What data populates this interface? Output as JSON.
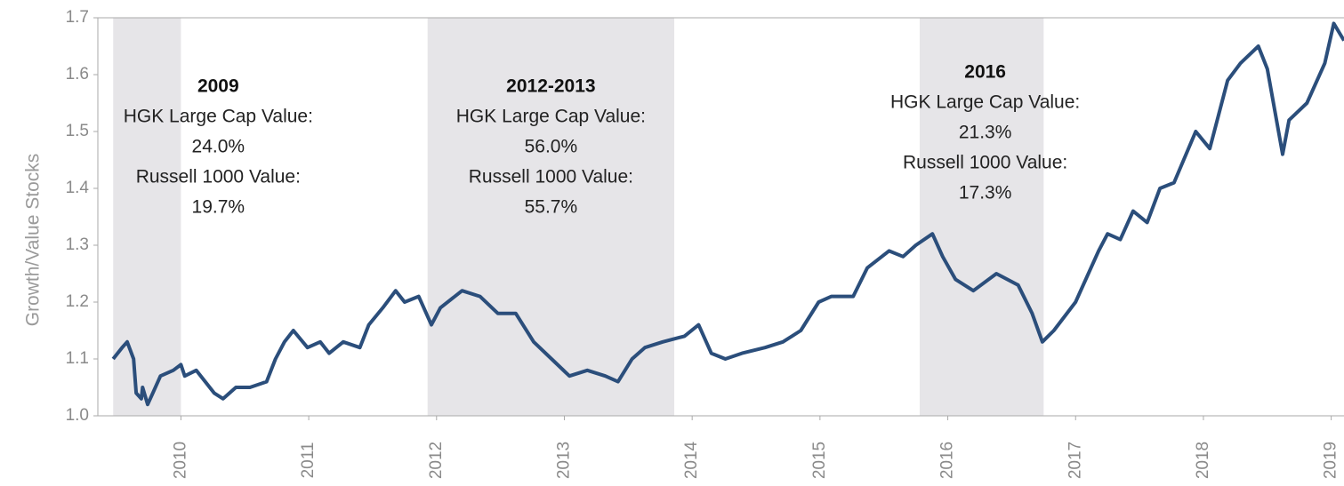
{
  "chart_data": {
    "type": "line",
    "y_label": "Growth/Value Stocks",
    "xlim": [
      2009.35,
      2019.1
    ],
    "xticks": [
      2010,
      2011,
      2012,
      2013,
      2014,
      2015,
      2016,
      2017,
      2018,
      2019
    ],
    "ylim": [
      1.0,
      1.7
    ],
    "yticks": [
      {
        "value": 1.0,
        "label": "1.0"
      },
      1.1,
      1.2,
      1.3,
      1.4,
      1.5,
      1.6,
      1.7
    ],
    "shaded_periods": [
      {
        "from": 2009.47,
        "to": 2010.0,
        "title": "2009",
        "lines": [
          "HGK Large Cap Value:",
          "24.0%",
          "Russell 1000 Value:",
          "19.7%"
        ]
      },
      {
        "from": 2011.93,
        "to": 2013.86,
        "title": "2012-2013",
        "lines": [
          "HGK Large Cap Value:",
          "56.0%",
          "Russell 1000 Value:",
          "55.7%"
        ]
      },
      {
        "from": 2015.78,
        "to": 2016.75,
        "title": "2016",
        "lines": [
          "HGK Large Cap Value:",
          "21.3%",
          "Russell 1000 Value:",
          "17.3%"
        ]
      }
    ],
    "shade_color": "#e6e5e8",
    "series": [
      {
        "color": "#2b4e7b",
        "x": [
          2009.47,
          2009.54,
          2009.58,
          2009.63,
          2009.65,
          2009.69,
          2009.7,
          2009.74,
          2009.78,
          2009.84,
          2009.94,
          2010.0,
          2010.03,
          2010.12,
          2010.26,
          2010.33,
          2010.43,
          2010.54,
          2010.67,
          2010.74,
          2010.81,
          2010.88,
          2010.99,
          2011.09,
          2011.16,
          2011.27,
          2011.4,
          2011.47,
          2011.58,
          2011.68,
          2011.75,
          2011.86,
          2011.96,
          2012.03,
          2012.2,
          2012.34,
          2012.48,
          2012.62,
          2012.76,
          2012.9,
          2013.04,
          2013.18,
          2013.32,
          2013.42,
          2013.53,
          2013.63,
          2013.77,
          2013.94,
          2014.05,
          2014.15,
          2014.26,
          2014.39,
          2014.57,
          2014.71,
          2014.85,
          2014.99,
          2015.09,
          2015.26,
          2015.37,
          2015.54,
          2015.65,
          2015.75,
          2015.88,
          2015.96,
          2016.06,
          2016.2,
          2016.38,
          2016.55,
          2016.66,
          2016.74,
          2016.83,
          2017.0,
          2017.18,
          2017.25,
          2017.35,
          2017.45,
          2017.56,
          2017.66,
          2017.77,
          2017.94,
          2018.05,
          2018.19,
          2018.29,
          2018.43,
          2018.5,
          2018.62,
          2018.67,
          2018.81,
          2018.95,
          2019.02,
          2019.1
        ],
        "values": [
          1.1,
          1.12,
          1.13,
          1.1,
          1.04,
          1.03,
          1.05,
          1.02,
          1.04,
          1.07,
          1.08,
          1.09,
          1.07,
          1.08,
          1.04,
          1.03,
          1.05,
          1.05,
          1.06,
          1.1,
          1.13,
          1.15,
          1.12,
          1.13,
          1.11,
          1.13,
          1.12,
          1.16,
          1.19,
          1.22,
          1.2,
          1.21,
          1.16,
          1.19,
          1.22,
          1.21,
          1.18,
          1.18,
          1.13,
          1.1,
          1.07,
          1.08,
          1.07,
          1.06,
          1.1,
          1.12,
          1.13,
          1.14,
          1.16,
          1.11,
          1.1,
          1.11,
          1.12,
          1.13,
          1.15,
          1.2,
          1.21,
          1.21,
          1.26,
          1.29,
          1.28,
          1.3,
          1.32,
          1.28,
          1.24,
          1.22,
          1.25,
          1.23,
          1.18,
          1.13,
          1.15,
          1.2,
          1.29,
          1.32,
          1.31,
          1.36,
          1.34,
          1.4,
          1.41,
          1.5,
          1.47,
          1.59,
          1.62,
          1.65,
          1.61,
          1.46,
          1.52,
          1.55,
          1.62,
          1.69,
          1.66
        ]
      }
    ]
  }
}
